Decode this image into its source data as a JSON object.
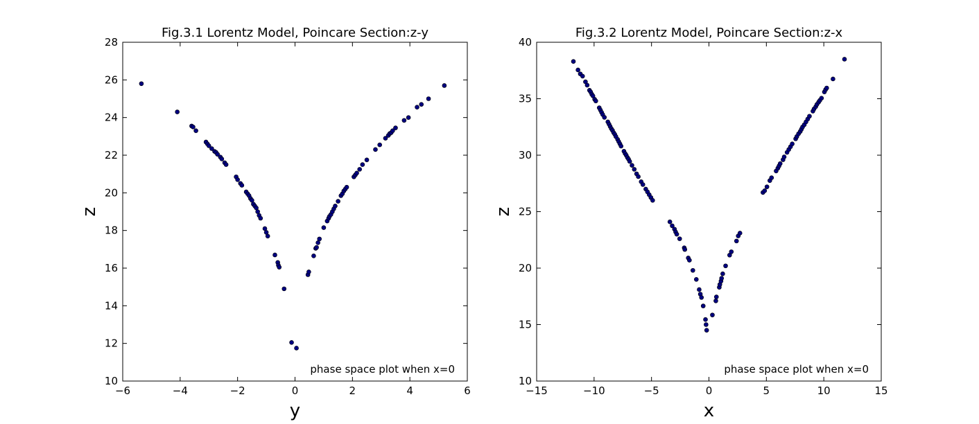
{
  "chart_data": [
    {
      "type": "scatter",
      "title": "Fig.3.1 Lorentz Model, Poincare Section:z-y",
      "xlabel": "y",
      "ylabel": "z",
      "annotation": "phase space plot when x=0",
      "xlim": [
        -6,
        6
      ],
      "ylim": [
        10,
        28
      ],
      "xticks": [
        -6,
        -4,
        -2,
        0,
        2,
        4,
        6
      ],
      "yticks": [
        10,
        12,
        14,
        16,
        18,
        20,
        22,
        24,
        26,
        28
      ],
      "grid": false,
      "marker_color": "#00007f",
      "points": [
        [
          -5.35,
          25.8
        ],
        [
          -4.1,
          24.3
        ],
        [
          -3.6,
          23.55
        ],
        [
          -3.55,
          23.5
        ],
        [
          -3.45,
          23.3
        ],
        [
          -3.1,
          22.7
        ],
        [
          -3.05,
          22.6
        ],
        [
          -3.0,
          22.5
        ],
        [
          -2.9,
          22.35
        ],
        [
          -2.8,
          22.2
        ],
        [
          -2.75,
          22.15
        ],
        [
          -2.7,
          22.05
        ],
        [
          -2.6,
          21.9
        ],
        [
          -2.55,
          21.8
        ],
        [
          -2.45,
          21.6
        ],
        [
          -2.4,
          21.5
        ],
        [
          -2.05,
          20.85
        ],
        [
          -2.0,
          20.7
        ],
        [
          -1.9,
          20.5
        ],
        [
          -1.85,
          20.4
        ],
        [
          -1.7,
          20.05
        ],
        [
          -1.65,
          19.95
        ],
        [
          -1.6,
          19.85
        ],
        [
          -1.55,
          19.7
        ],
        [
          -1.5,
          19.6
        ],
        [
          -1.45,
          19.4
        ],
        [
          -1.4,
          19.3
        ],
        [
          -1.35,
          19.2
        ],
        [
          -1.3,
          19.0
        ],
        [
          -1.25,
          18.8
        ],
        [
          -1.2,
          18.65
        ],
        [
          -1.05,
          18.1
        ],
        [
          -1.0,
          17.9
        ],
        [
          -0.95,
          17.7
        ],
        [
          -0.7,
          16.7
        ],
        [
          -0.6,
          16.3
        ],
        [
          -0.58,
          16.15
        ],
        [
          -0.55,
          16.05
        ],
        [
          -0.38,
          14.9
        ],
        [
          -0.12,
          12.05
        ],
        [
          0.05,
          11.75
        ],
        [
          0.45,
          15.65
        ],
        [
          0.48,
          15.8
        ],
        [
          0.65,
          16.65
        ],
        [
          0.72,
          17.05
        ],
        [
          0.75,
          17.1
        ],
        [
          0.8,
          17.35
        ],
        [
          0.85,
          17.55
        ],
        [
          1.0,
          18.15
        ],
        [
          1.12,
          18.5
        ],
        [
          1.17,
          18.65
        ],
        [
          1.2,
          18.75
        ],
        [
          1.25,
          18.85
        ],
        [
          1.3,
          19.0
        ],
        [
          1.35,
          19.15
        ],
        [
          1.4,
          19.3
        ],
        [
          1.5,
          19.55
        ],
        [
          1.6,
          19.85
        ],
        [
          1.65,
          19.95
        ],
        [
          1.7,
          20.1
        ],
        [
          1.75,
          20.2
        ],
        [
          1.8,
          20.3
        ],
        [
          2.05,
          20.85
        ],
        [
          2.1,
          20.95
        ],
        [
          2.15,
          21.05
        ],
        [
          2.25,
          21.25
        ],
        [
          2.35,
          21.5
        ],
        [
          2.5,
          21.75
        ],
        [
          2.8,
          22.3
        ],
        [
          2.95,
          22.55
        ],
        [
          3.15,
          22.9
        ],
        [
          3.25,
          23.05
        ],
        [
          3.3,
          23.15
        ],
        [
          3.35,
          23.2
        ],
        [
          3.4,
          23.3
        ],
        [
          3.5,
          23.45
        ],
        [
          3.8,
          23.85
        ],
        [
          3.95,
          24.0
        ],
        [
          4.25,
          24.55
        ],
        [
          4.4,
          24.7
        ],
        [
          4.65,
          25.0
        ],
        [
          5.2,
          25.7
        ]
      ]
    },
    {
      "type": "scatter",
      "title": "Fig.3.2 Lorentz Model, Poincare Section:z-x",
      "xlabel": "x",
      "ylabel": "z",
      "annotation": "phase space plot when x=0",
      "xlim": [
        -15,
        15
      ],
      "ylim": [
        10,
        40
      ],
      "xticks": [
        -15,
        -10,
        -5,
        0,
        5,
        10,
        15
      ],
      "yticks": [
        10,
        15,
        20,
        25,
        30,
        35,
        40
      ],
      "grid": false,
      "marker_color": "#00007f",
      "points": [
        [
          -11.8,
          38.3
        ],
        [
          -11.4,
          37.55
        ],
        [
          -11.2,
          37.2
        ],
        [
          -11.0,
          37.0
        ],
        [
          -10.75,
          36.5
        ],
        [
          -10.6,
          36.2
        ],
        [
          -10.4,
          35.75
        ],
        [
          -10.3,
          35.6
        ],
        [
          -10.2,
          35.4
        ],
        [
          -10.1,
          35.25
        ],
        [
          -9.95,
          34.95
        ],
        [
          -9.85,
          34.8
        ],
        [
          -9.55,
          34.2
        ],
        [
          -9.45,
          34.0
        ],
        [
          -9.35,
          33.8
        ],
        [
          -9.25,
          33.6
        ],
        [
          -9.1,
          33.35
        ],
        [
          -8.8,
          32.95
        ],
        [
          -8.7,
          32.75
        ],
        [
          -8.6,
          32.55
        ],
        [
          -8.5,
          32.35
        ],
        [
          -8.4,
          32.2
        ],
        [
          -8.3,
          32.0
        ],
        [
          -8.2,
          31.85
        ],
        [
          -8.1,
          31.65
        ],
        [
          -7.95,
          31.4
        ],
        [
          -7.85,
          31.2
        ],
        [
          -7.75,
          31.0
        ],
        [
          -7.65,
          30.8
        ],
        [
          -7.4,
          30.35
        ],
        [
          -7.3,
          30.15
        ],
        [
          -7.2,
          30.0
        ],
        [
          -7.1,
          29.8
        ],
        [
          -7.0,
          29.65
        ],
        [
          -6.9,
          29.45
        ],
        [
          -6.7,
          29.1
        ],
        [
          -6.5,
          28.75
        ],
        [
          -6.3,
          28.35
        ],
        [
          -6.15,
          28.1
        ],
        [
          -5.9,
          27.65
        ],
        [
          -5.75,
          27.4
        ],
        [
          -5.5,
          27.0
        ],
        [
          -5.35,
          26.75
        ],
        [
          -5.2,
          26.5
        ],
        [
          -5.05,
          26.25
        ],
        [
          -4.9,
          26.0
        ],
        [
          -3.4,
          24.1
        ],
        [
          -3.2,
          23.75
        ],
        [
          -3.0,
          23.45
        ],
        [
          -2.9,
          23.2
        ],
        [
          -2.8,
          23.0
        ],
        [
          -2.55,
          22.6
        ],
        [
          -2.15,
          21.8
        ],
        [
          -2.1,
          21.65
        ],
        [
          -1.8,
          20.9
        ],
        [
          -1.7,
          20.7
        ],
        [
          -1.4,
          19.8
        ],
        [
          -1.1,
          19.0
        ],
        [
          -0.85,
          18.1
        ],
        [
          -0.75,
          17.7
        ],
        [
          -0.65,
          17.4
        ],
        [
          -0.5,
          16.65
        ],
        [
          -0.3,
          15.45
        ],
        [
          -0.25,
          15.0
        ],
        [
          -0.2,
          14.5
        ],
        [
          0.3,
          15.85
        ],
        [
          0.6,
          17.1
        ],
        [
          0.65,
          17.45
        ],
        [
          0.9,
          18.3
        ],
        [
          0.95,
          18.55
        ],
        [
          1.05,
          18.85
        ],
        [
          1.1,
          19.1
        ],
        [
          1.2,
          19.5
        ],
        [
          1.45,
          20.2
        ],
        [
          1.8,
          21.15
        ],
        [
          1.95,
          21.45
        ],
        [
          2.4,
          22.4
        ],
        [
          2.55,
          22.85
        ],
        [
          2.7,
          23.1
        ],
        [
          4.7,
          26.7
        ],
        [
          4.85,
          26.85
        ],
        [
          5.05,
          27.2
        ],
        [
          5.3,
          27.75
        ],
        [
          5.45,
          28.0
        ],
        [
          5.85,
          28.6
        ],
        [
          6.0,
          28.85
        ],
        [
          6.1,
          29.05
        ],
        [
          6.2,
          29.25
        ],
        [
          6.45,
          29.6
        ],
        [
          6.55,
          29.85
        ],
        [
          6.8,
          30.25
        ],
        [
          6.95,
          30.5
        ],
        [
          7.1,
          30.75
        ],
        [
          7.25,
          31.0
        ],
        [
          7.55,
          31.45
        ],
        [
          7.65,
          31.65
        ],
        [
          7.8,
          31.9
        ],
        [
          7.95,
          32.1
        ],
        [
          8.05,
          32.3
        ],
        [
          8.15,
          32.5
        ],
        [
          8.3,
          32.7
        ],
        [
          8.45,
          32.95
        ],
        [
          8.6,
          33.2
        ],
        [
          8.75,
          33.45
        ],
        [
          9.05,
          33.9
        ],
        [
          9.15,
          34.1
        ],
        [
          9.3,
          34.3
        ],
        [
          9.4,
          34.5
        ],
        [
          9.55,
          34.7
        ],
        [
          9.65,
          34.85
        ],
        [
          9.8,
          35.05
        ],
        [
          10.05,
          35.6
        ],
        [
          10.15,
          35.8
        ],
        [
          10.25,
          35.95
        ],
        [
          10.8,
          36.75
        ],
        [
          11.8,
          38.5
        ]
      ]
    }
  ]
}
